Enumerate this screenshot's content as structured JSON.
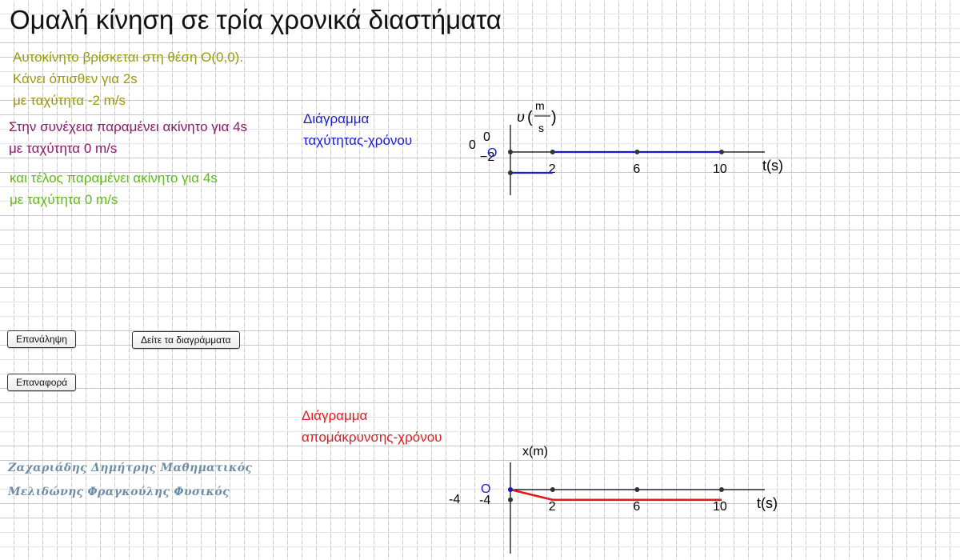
{
  "title": "Ομαλή κίνηση σε τρία χρονικά διαστήματα",
  "phase1": {
    "line1": "Αυτοκίνητο βρίσκεται στη θέση Ο(0,0).",
    "line2": "Κάνει όπισθεν για  2s",
    "line3": "με ταχύτητα -2 m/s"
  },
  "phase2": {
    "line1": "Στην συνέχεια παραμένει ακίνητο για 4s",
    "line2": "με ταχύτητα 0 m/s"
  },
  "phase3": {
    "line1": "και τέλος παραμένει ακίνητο για  4s",
    "line2": "με ταχύτητα 0 m/s"
  },
  "buttons": {
    "repeat": "Επανάληψη",
    "show_diagrams": "Δείτε τα διαγράμματα",
    "reset": "Επαναφορά"
  },
  "credits": {
    "author1": "Ζαχαριάδης Δημήτρης Μαθηματικός",
    "author2": "Μελιδώνης Φραγκούλης Φυσικός"
  },
  "velocity_chart": {
    "label_line1": "Διάγραμμα",
    "label_line2": "ταχύτητας-χρόνου",
    "y_axis_var": "υ",
    "y_unit_num": "m",
    "y_unit_den": "s",
    "x_axis_label": "t(s)",
    "origin_label": "O",
    "extra_labels": {
      "zero_a": "0",
      "zero_b": "0",
      "minus_two": "−2"
    },
    "x_ticks": [
      "2",
      "6",
      "10"
    ],
    "color": "#1a1ad6"
  },
  "position_chart": {
    "label_line1": "Διάγραμμα",
    "label_line2": "απομάκρυνσης-χρόνου",
    "y_axis_label": "x(m)",
    "x_axis_label": "t(s)",
    "origin_label": "O",
    "extra_labels": {
      "minus_four_a": "-4",
      "minus_four_b": "-4"
    },
    "x_ticks": [
      "2",
      "6",
      "10"
    ],
    "color": "#e11a1a"
  },
  "chart_data": [
    {
      "type": "line",
      "xlabel": "t(s)",
      "ylabel": "υ(m/s)",
      "x": [
        0,
        2,
        2,
        6,
        10
      ],
      "series": [
        {
          "values": [
            -2,
            -2,
            0,
            0,
            0
          ]
        }
      ],
      "xlim": [
        0,
        10
      ],
      "x_tick_labels": [
        "2",
        "6",
        "10"
      ]
    },
    {
      "type": "line",
      "xlabel": "t(s)",
      "ylabel": "x(m)",
      "x": [
        0,
        2,
        6,
        10
      ],
      "series": [
        {
          "values": [
            0,
            -4,
            -4,
            -4
          ]
        }
      ],
      "xlim": [
        0,
        10
      ],
      "x_tick_labels": [
        "2",
        "6",
        "10"
      ]
    }
  ]
}
